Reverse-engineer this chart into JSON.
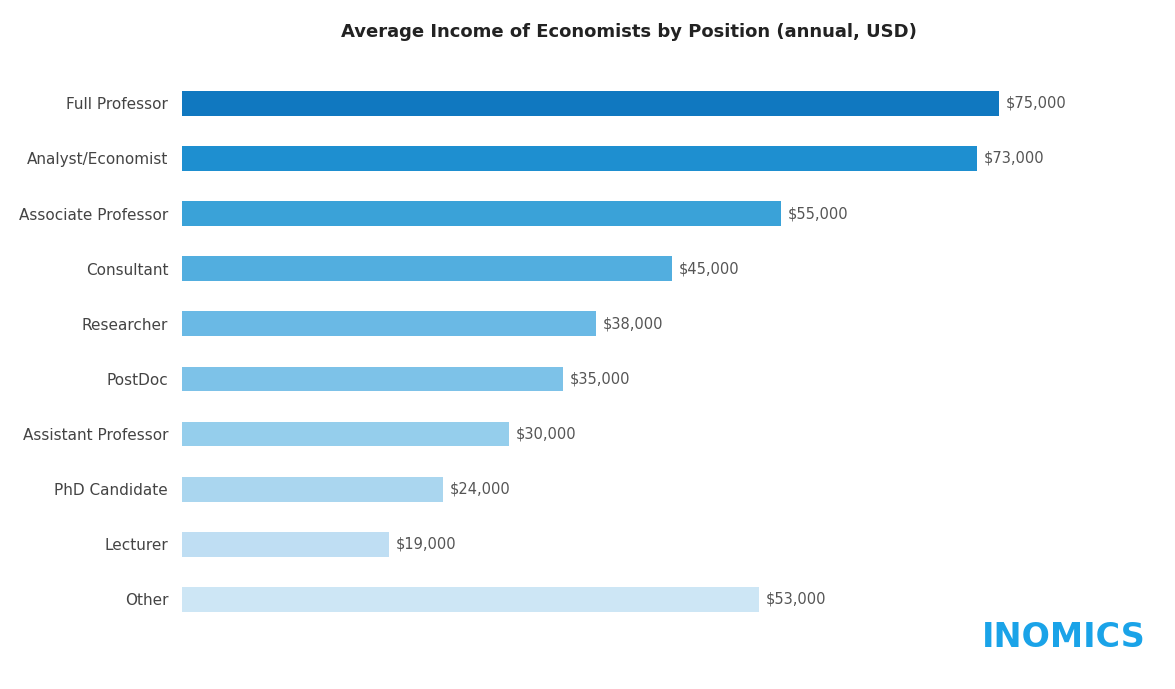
{
  "title": "Average Income of Economists by Position (annual, USD)",
  "categories": [
    "Full Professor",
    "Analyst/Economist",
    "Associate Professor",
    "Consultant",
    "Researcher",
    "PostDoc",
    "Assistant Professor",
    "PhD Candidate",
    "Lecturer",
    "Other"
  ],
  "values": [
    75000,
    73000,
    55000,
    45000,
    38000,
    35000,
    30000,
    24000,
    19000,
    53000
  ],
  "bar_colors": [
    "#1078c0",
    "#1e8fd0",
    "#3aa2d8",
    "#52aedf",
    "#6ab9e5",
    "#7dc2e8",
    "#95ceec",
    "#aad6ef",
    "#bfdef3",
    "#cde6f5"
  ],
  "label_color": "#444444",
  "value_label_color": "#555555",
  "background_color": "#ffffff",
  "title_fontsize": 13,
  "label_fontsize": 11,
  "value_fontsize": 10.5,
  "inomics_text": "INOMICS",
  "inomics_color": "#1aa3e8",
  "inomics_fontsize": 24,
  "xlim": [
    0,
    82000
  ],
  "bar_height": 0.45
}
